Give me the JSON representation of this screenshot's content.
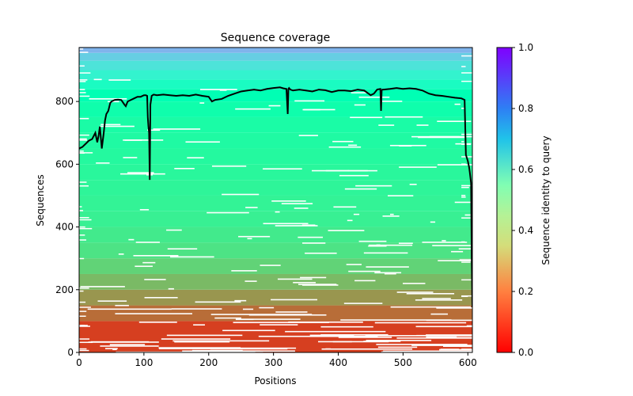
{
  "chart_data": {
    "type": "heatmap",
    "title": "Sequence coverage",
    "xlabel": "Positions",
    "ylabel": "Sequences",
    "xlim": [
      0,
      607
    ],
    "ylim": [
      0,
      972
    ],
    "x_ticks": [
      0,
      100,
      200,
      300,
      400,
      500,
      600
    ],
    "y_ticks": [
      0,
      200,
      400,
      600,
      800
    ],
    "colorbar": {
      "label": "Sequence identity to query",
      "range": [
        0.0,
        1.0
      ],
      "ticks": [
        0.0,
        0.2,
        0.4,
        0.6,
        0.8,
        1.0
      ],
      "tick_labels": [
        "0.0",
        "0.2",
        "0.4",
        "0.6",
        "0.8",
        "1.0"
      ],
      "colormap": "rainbow_r"
    },
    "identity_bands": [
      {
        "seq_from": 0,
        "seq_to": 100,
        "identity": 0.08
      },
      {
        "seq_from": 100,
        "seq_to": 150,
        "identity": 0.14
      },
      {
        "seq_from": 150,
        "seq_to": 200,
        "identity": 0.2
      },
      {
        "seq_from": 200,
        "seq_to": 250,
        "identity": 0.26
      },
      {
        "seq_from": 250,
        "seq_to": 300,
        "identity": 0.31
      },
      {
        "seq_from": 300,
        "seq_to": 350,
        "identity": 0.35
      },
      {
        "seq_from": 350,
        "seq_to": 400,
        "identity": 0.37
      },
      {
        "seq_from": 400,
        "seq_to": 450,
        "identity": 0.39
      },
      {
        "seq_from": 450,
        "seq_to": 500,
        "identity": 0.4
      },
      {
        "seq_from": 500,
        "seq_to": 550,
        "identity": 0.41
      },
      {
        "seq_from": 550,
        "seq_to": 600,
        "identity": 0.42
      },
      {
        "seq_from": 600,
        "seq_to": 650,
        "identity": 0.43
      },
      {
        "seq_from": 650,
        "seq_to": 700,
        "identity": 0.44
      },
      {
        "seq_from": 700,
        "seq_to": 750,
        "identity": 0.45
      },
      {
        "seq_from": 750,
        "seq_to": 800,
        "identity": 0.47
      },
      {
        "seq_from": 800,
        "seq_to": 840,
        "identity": 0.5
      },
      {
        "seq_from": 840,
        "seq_to": 870,
        "identity": 0.55
      },
      {
        "seq_from": 870,
        "seq_to": 900,
        "identity": 0.6
      },
      {
        "seq_from": 900,
        "seq_to": 930,
        "identity": 0.65
      },
      {
        "seq_from": 930,
        "seq_to": 955,
        "identity": 0.7
      },
      {
        "seq_from": 955,
        "seq_to": 972,
        "identity": 0.75
      }
    ],
    "series": [
      {
        "x": [
          0,
          5,
          10,
          15,
          20,
          25,
          28,
          30,
          32,
          35,
          38,
          40,
          42,
          45,
          48,
          50,
          55,
          60,
          65,
          70,
          72,
          75,
          80,
          85,
          90,
          95,
          100,
          103,
          105,
          106,
          107,
          108,
          109,
          110,
          112,
          115,
          120,
          130,
          140,
          150,
          160,
          170,
          180,
          190,
          200,
          205,
          210,
          220,
          230,
          240,
          250,
          260,
          270,
          280,
          290,
          300,
          310,
          315,
          320,
          322,
          323,
          324,
          326,
          330,
          340,
          350,
          360,
          370,
          380,
          390,
          400,
          410,
          420,
          430,
          440,
          450,
          455,
          460,
          465,
          466,
          467,
          468,
          470,
          480,
          490,
          500,
          510,
          520,
          530,
          540,
          550,
          560,
          570,
          580,
          590,
          595,
          597,
          600,
          602,
          603,
          605,
          606,
          607
        ],
        "y": [
          650,
          655,
          665,
          675,
          680,
          700,
          670,
          690,
          720,
          650,
          700,
          740,
          760,
          770,
          795,
          800,
          805,
          806,
          805,
          790,
          785,
          800,
          805,
          810,
          815,
          815,
          820,
          820,
          818,
          750,
          720,
          700,
          550,
          790,
          818,
          822,
          820,
          822,
          820,
          818,
          820,
          818,
          822,
          818,
          815,
          800,
          805,
          808,
          818,
          825,
          832,
          835,
          838,
          835,
          840,
          843,
          845,
          842,
          840,
          760,
          840,
          843,
          838,
          835,
          838,
          835,
          832,
          838,
          836,
          830,
          835,
          835,
          833,
          838,
          835,
          820,
          825,
          838,
          840,
          770,
          835,
          838,
          838,
          840,
          843,
          840,
          842,
          840,
          835,
          825,
          820,
          818,
          815,
          812,
          810,
          805,
          630,
          610,
          590,
          575,
          540,
          300,
          145
        ]
      }
    ]
  }
}
